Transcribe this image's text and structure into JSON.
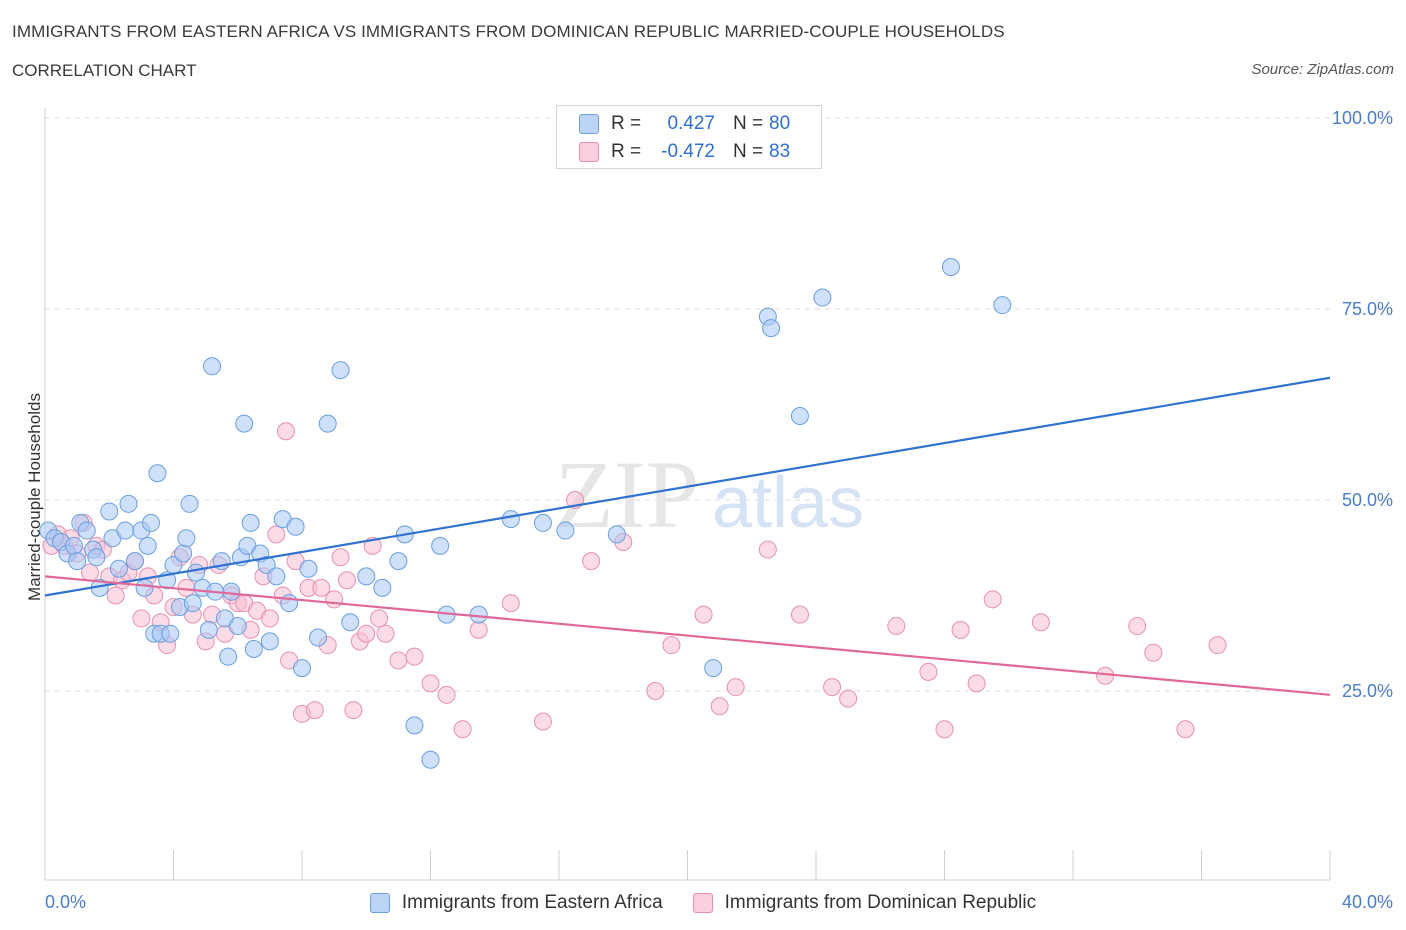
{
  "header": {
    "title": "IMMIGRANTS FROM EASTERN AFRICA VS IMMIGRANTS FROM DOMINICAN REPUBLIC MARRIED-COUPLE HOUSEHOLDS",
    "subtitle": "CORRELATION CHART",
    "source": "Source: ZipAtlas.com"
  },
  "legend_top": {
    "rows": [
      {
        "r_label": "R =",
        "r_value": "0.427",
        "n_label": "N =",
        "n_value": "80"
      },
      {
        "r_label": "R =",
        "r_value": "-0.472",
        "n_label": "N =",
        "n_value": "83"
      }
    ]
  },
  "colors": {
    "blue_fill": "#a8c8f5",
    "blue_stroke": "#6a9fe0",
    "blue_line": "#2f72d2",
    "pink_fill": "#f7bfd1",
    "pink_stroke": "#e890ae",
    "pink_line": "#e0699a",
    "axis_text": "#4a7cc9",
    "grid": "#dedede"
  },
  "chart_data": {
    "type": "scatter",
    "title": "IMMIGRANTS FROM EASTERN AFRICA VS IMMIGRANTS FROM DOMINICAN REPUBLIC MARRIED-COUPLE HOUSEHOLDS",
    "ylabel": "Married-couple Households",
    "xlabel": "",
    "xlim": [
      0,
      40
    ],
    "ylim": [
      0,
      100
    ],
    "x_tick_labels": [
      "0.0%",
      "40.0%"
    ],
    "y_ticks": [
      25,
      50,
      75,
      100
    ],
    "y_tick_labels": [
      "25.0%",
      "50.0%",
      "75.0%",
      "100.0%"
    ],
    "grid": true,
    "watermark": {
      "zip": "ZIP",
      "atlas": "atlas"
    },
    "series": [
      {
        "name": "Immigrants from Eastern Africa",
        "color": "#a8c8f5",
        "trend": {
          "x": [
            0,
            40
          ],
          "y": [
            37.5,
            66.0
          ]
        },
        "points": [
          [
            0.1,
            46.0
          ],
          [
            0.3,
            45.0
          ],
          [
            0.5,
            44.5
          ],
          [
            0.7,
            43.0
          ],
          [
            0.9,
            44.0
          ],
          [
            1.0,
            42.0
          ],
          [
            1.1,
            47.0
          ],
          [
            1.3,
            46.0
          ],
          [
            1.5,
            43.5
          ],
          [
            1.6,
            42.5
          ],
          [
            1.7,
            38.5
          ],
          [
            2.0,
            48.5
          ],
          [
            2.1,
            45.0
          ],
          [
            2.3,
            41.0
          ],
          [
            2.5,
            46.0
          ],
          [
            2.6,
            49.5
          ],
          [
            2.8,
            42.0
          ],
          [
            3.0,
            46.0
          ],
          [
            3.1,
            38.5
          ],
          [
            3.2,
            44.0
          ],
          [
            3.3,
            47.0
          ],
          [
            3.4,
            32.5
          ],
          [
            3.5,
            53.5
          ],
          [
            3.6,
            32.5
          ],
          [
            3.8,
            39.5
          ],
          [
            3.9,
            32.5
          ],
          [
            4.0,
            41.5
          ],
          [
            4.2,
            36.0
          ],
          [
            4.3,
            43.0
          ],
          [
            4.4,
            45.0
          ],
          [
            4.6,
            36.5
          ],
          [
            4.7,
            40.5
          ],
          [
            4.9,
            38.5
          ],
          [
            5.1,
            33.0
          ],
          [
            5.3,
            38.0
          ],
          [
            5.5,
            42.0
          ],
          [
            5.6,
            34.5
          ],
          [
            5.7,
            29.5
          ],
          [
            5.8,
            38.0
          ],
          [
            6.0,
            33.5
          ],
          [
            6.1,
            42.5
          ],
          [
            6.3,
            44.0
          ],
          [
            6.4,
            47.0
          ],
          [
            6.5,
            30.5
          ],
          [
            6.7,
            43.0
          ],
          [
            6.9,
            41.5
          ],
          [
            7.0,
            31.5
          ],
          [
            7.2,
            40.0
          ],
          [
            7.4,
            47.5
          ],
          [
            7.6,
            36.5
          ],
          [
            7.8,
            46.5
          ],
          [
            8.0,
            28.0
          ],
          [
            8.2,
            41.0
          ],
          [
            8.5,
            32.0
          ],
          [
            8.8,
            60.0
          ],
          [
            9.2,
            67.0
          ],
          [
            9.5,
            34.0
          ],
          [
            10.0,
            40.0
          ],
          [
            10.5,
            38.5
          ],
          [
            11.0,
            42.0
          ],
          [
            11.2,
            45.5
          ],
          [
            11.5,
            20.5
          ],
          [
            12.0,
            16.0
          ],
          [
            12.3,
            44.0
          ],
          [
            12.5,
            35.0
          ],
          [
            13.5,
            35.0
          ],
          [
            5.2,
            67.5
          ],
          [
            4.5,
            49.5
          ],
          [
            14.5,
            47.5
          ],
          [
            15.5,
            47.0
          ],
          [
            17.8,
            45.5
          ],
          [
            16.2,
            46.0
          ],
          [
            22.5,
            74.0
          ],
          [
            22.6,
            72.5
          ],
          [
            23.5,
            61.0
          ],
          [
            24.2,
            76.5
          ],
          [
            28.2,
            80.5
          ],
          [
            29.8,
            75.5
          ],
          [
            20.8,
            28.0
          ],
          [
            6.2,
            60.0
          ]
        ]
      },
      {
        "name": "Immigrants from Dominican Republic",
        "color": "#f7bfd1",
        "trend": {
          "x": [
            0,
            40
          ],
          "y": [
            40.0,
            24.5
          ]
        },
        "points": [
          [
            0.2,
            44.0
          ],
          [
            0.4,
            45.5
          ],
          [
            0.6,
            44.0
          ],
          [
            0.8,
            45.0
          ],
          [
            1.0,
            43.0
          ],
          [
            1.2,
            47.0
          ],
          [
            1.4,
            40.5
          ],
          [
            1.6,
            44.0
          ],
          [
            1.8,
            43.5
          ],
          [
            2.0,
            40.0
          ],
          [
            2.2,
            37.5
          ],
          [
            2.4,
            39.5
          ],
          [
            2.6,
            40.5
          ],
          [
            2.8,
            42.0
          ],
          [
            3.0,
            34.5
          ],
          [
            3.2,
            40.0
          ],
          [
            3.4,
            37.5
          ],
          [
            3.6,
            34.0
          ],
          [
            3.8,
            31.0
          ],
          [
            4.0,
            36.0
          ],
          [
            4.2,
            42.5
          ],
          [
            4.4,
            38.5
          ],
          [
            4.6,
            35.0
          ],
          [
            4.8,
            41.5
          ],
          [
            5.0,
            31.5
          ],
          [
            5.2,
            35.0
          ],
          [
            5.4,
            41.5
          ],
          [
            5.6,
            32.5
          ],
          [
            5.8,
            37.5
          ],
          [
            6.0,
            36.5
          ],
          [
            6.2,
            36.5
          ],
          [
            6.4,
            33.0
          ],
          [
            6.6,
            35.5
          ],
          [
            6.8,
            40.0
          ],
          [
            7.0,
            34.5
          ],
          [
            7.2,
            45.5
          ],
          [
            7.4,
            37.5
          ],
          [
            7.6,
            29.0
          ],
          [
            7.8,
            42.0
          ],
          [
            8.0,
            22.0
          ],
          [
            8.2,
            38.5
          ],
          [
            8.4,
            22.5
          ],
          [
            8.6,
            38.5
          ],
          [
            8.8,
            31.0
          ],
          [
            9.0,
            37.0
          ],
          [
            9.2,
            42.5
          ],
          [
            9.4,
            39.5
          ],
          [
            9.6,
            22.5
          ],
          [
            9.8,
            31.5
          ],
          [
            10.0,
            32.5
          ],
          [
            10.2,
            44.0
          ],
          [
            10.4,
            34.5
          ],
          [
            10.6,
            32.5
          ],
          [
            11.0,
            29.0
          ],
          [
            11.5,
            29.5
          ],
          [
            12.0,
            26.0
          ],
          [
            12.5,
            24.5
          ],
          [
            13.0,
            20.0
          ],
          [
            13.5,
            33.0
          ],
          [
            14.5,
            36.5
          ],
          [
            15.5,
            21.0
          ],
          [
            16.5,
            50.0
          ],
          [
            17.0,
            42.0
          ],
          [
            18.0,
            44.5
          ],
          [
            19.0,
            25.0
          ],
          [
            19.5,
            31.0
          ],
          [
            20.5,
            35.0
          ],
          [
            21.0,
            23.0
          ],
          [
            21.5,
            25.5
          ],
          [
            22.5,
            43.5
          ],
          [
            23.5,
            35.0
          ],
          [
            24.5,
            25.5
          ],
          [
            25.0,
            24.0
          ],
          [
            26.5,
            33.5
          ],
          [
            27.5,
            27.5
          ],
          [
            28.0,
            20.0
          ],
          [
            28.5,
            33.0
          ],
          [
            29.0,
            26.0
          ],
          [
            29.5,
            37.0
          ],
          [
            31.0,
            34.0
          ],
          [
            33.0,
            27.0
          ],
          [
            34.0,
            33.5
          ],
          [
            34.5,
            30.0
          ],
          [
            35.5,
            20.0
          ],
          [
            36.5,
            31.0
          ],
          [
            7.5,
            59.0
          ]
        ]
      }
    ]
  },
  "legend_bottom": {
    "items": [
      {
        "label": "Immigrants from Eastern Africa"
      },
      {
        "label": "Immigrants from Dominican Republic"
      }
    ]
  }
}
